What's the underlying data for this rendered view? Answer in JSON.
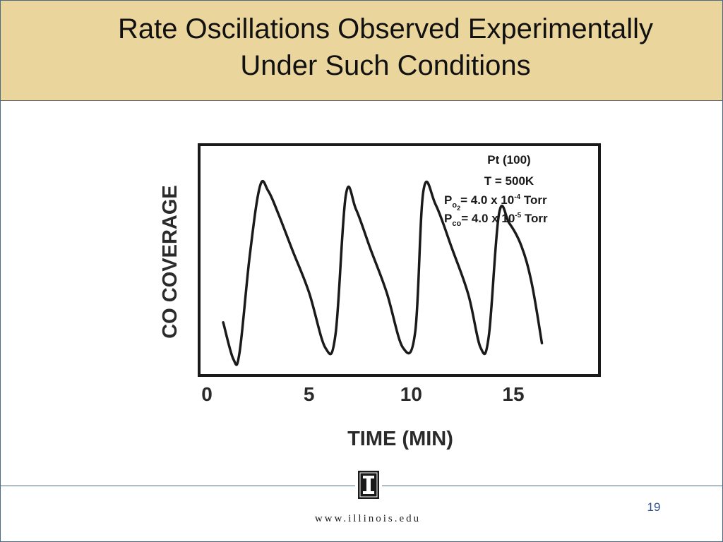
{
  "slide": {
    "title_line1": "Rate Oscillations Observed Experimentally",
    "title_line2": "Under Such Conditions",
    "footer_url": "www.illinois.edu",
    "page_number": "19",
    "logo_letter": "I"
  },
  "colors": {
    "title_bar": "#ead59c",
    "accent": "#2f4f8f",
    "ink": "#1a1a1a"
  },
  "chart_data": {
    "type": "line",
    "title": "",
    "xlabel": "TIME (MIN)",
    "ylabel": "CO COVERAGE",
    "xlim": [
      0,
      20
    ],
    "ylim": [
      0,
      1
    ],
    "xticks": [
      0,
      5,
      10,
      15
    ],
    "grid": false,
    "legend": "none",
    "annotations": {
      "line1": "Pt (100)",
      "line2": "T = 500K",
      "po2_text": "= 4.0 x 10",
      "po2_exp": "-4",
      "po2_unit": " Torr",
      "pco_text": "= 4.0 x 10",
      "pco_exp": "-5",
      "pco_unit": " Torr",
      "p_letter": "P",
      "o2_sub": "o",
      "o2_subsub": "2",
      "co_sub": "co"
    },
    "series": [
      {
        "x": [
          0.8,
          1.3,
          1.6,
          2.1,
          2.6,
          3.0,
          3.5,
          4.2,
          5.0,
          5.8,
          6.3,
          6.8,
          7.3,
          8.0,
          8.8,
          9.6,
          10.2,
          10.6,
          11.2,
          12.0,
          12.8,
          13.4,
          13.8,
          14.3,
          14.8,
          15.4,
          15.9,
          16.4
        ],
        "y": [
          0.23,
          0.07,
          0.1,
          0.52,
          0.82,
          0.8,
          0.7,
          0.54,
          0.36,
          0.12,
          0.18,
          0.78,
          0.72,
          0.55,
          0.36,
          0.12,
          0.19,
          0.8,
          0.74,
          0.55,
          0.35,
          0.12,
          0.17,
          0.7,
          0.66,
          0.56,
          0.4,
          0.14
        ]
      }
    ]
  }
}
